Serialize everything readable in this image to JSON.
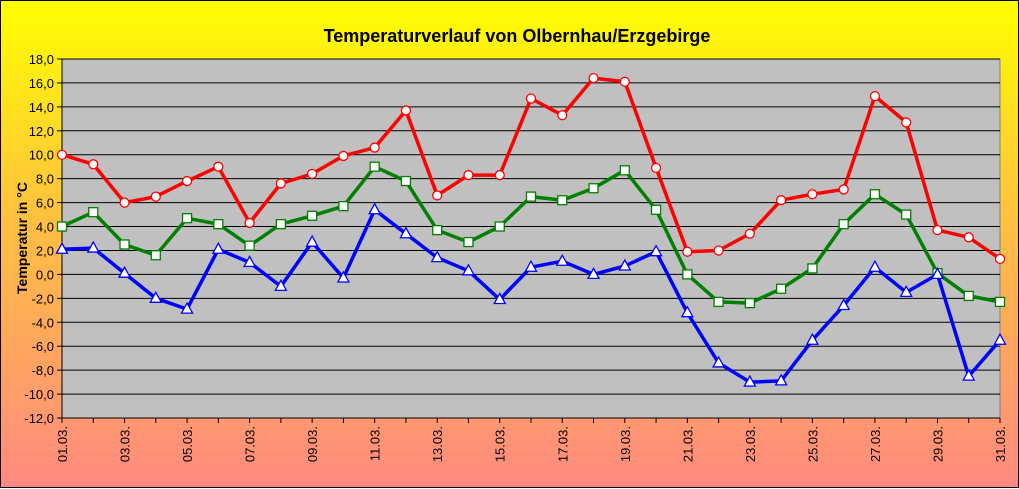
{
  "chart_data": {
    "type": "line",
    "title": "Temperaturverlauf von Olbernhau/Erzgebirge",
    "xlabel": "",
    "ylabel": "Temperatur in °C",
    "ylim": [
      -12,
      18
    ],
    "grid": true,
    "legend": "none",
    "categories": [
      "01.03.",
      "02.03.",
      "03.03.",
      "04.03.",
      "05.03.",
      "06.03.",
      "07.03.",
      "08.03.",
      "09.03.",
      "10.03.",
      "11.03.",
      "12.03.",
      "13.03.",
      "14.03.",
      "15.03.",
      "16.03.",
      "17.03.",
      "18.03.",
      "19.03.",
      "20.03.",
      "21.03.",
      "22.03.",
      "23.03.",
      "24.03.",
      "25.03.",
      "26.03.",
      "27.03.",
      "28.03.",
      "29.03.",
      "30.03.",
      "31.03."
    ],
    "x_tick_labels": [
      "01.03.",
      "03.03.",
      "05.03.",
      "07.03.",
      "09.03.",
      "11.03.",
      "13.03.",
      "15.03.",
      "17.03.",
      "19.03.",
      "21.03.",
      "23.03.",
      "25.03.",
      "27.03.",
      "29.03.",
      "31.03."
    ],
    "y_tick_labels": [
      "18,0",
      "16,0",
      "14,0",
      "12,0",
      "10,0",
      "8,0",
      "6,0",
      "4,0",
      "2,0",
      "0,0",
      "-2,0",
      "-4,0",
      "-6,0",
      "-8,0",
      "-10,0",
      "-12,0"
    ],
    "series": [
      {
        "color": "#ff0000",
        "marker": "circle",
        "values": [
          10.0,
          9.2,
          6.0,
          6.5,
          7.8,
          9.0,
          4.3,
          7.6,
          8.4,
          9.9,
          10.6,
          13.7,
          6.6,
          8.3,
          8.3,
          14.7,
          13.3,
          16.4,
          16.1,
          8.9,
          1.9,
          2.0,
          3.4,
          6.2,
          6.7,
          7.1,
          14.9,
          12.7,
          3.7,
          3.1,
          1.3
        ]
      },
      {
        "color": "#008000",
        "marker": "square",
        "values": [
          4.0,
          5.2,
          2.5,
          1.6,
          4.7,
          4.2,
          2.4,
          4.2,
          4.9,
          5.7,
          9.0,
          7.8,
          3.7,
          2.7,
          4.0,
          6.5,
          6.2,
          7.2,
          8.7,
          5.4,
          0.0,
          -2.3,
          -2.4,
          -1.2,
          0.5,
          4.2,
          6.7,
          5.0,
          0.1,
          -1.8,
          -2.3
        ]
      },
      {
        "color": "#0000ff",
        "marker": "triangle",
        "values": [
          2.1,
          2.2,
          0.1,
          -2.0,
          -2.9,
          2.1,
          1.0,
          -1.0,
          2.7,
          -0.3,
          5.4,
          3.4,
          1.4,
          0.3,
          -2.1,
          0.6,
          1.1,
          0.0,
          0.7,
          1.9,
          -3.2,
          -7.4,
          -9.0,
          -8.9,
          -5.5,
          -2.6,
          0.6,
          -1.5,
          0.0,
          -8.5,
          -5.5
        ]
      }
    ]
  },
  "colors": {
    "plot_background": "#c0c0c0",
    "grid": "#000000"
  }
}
